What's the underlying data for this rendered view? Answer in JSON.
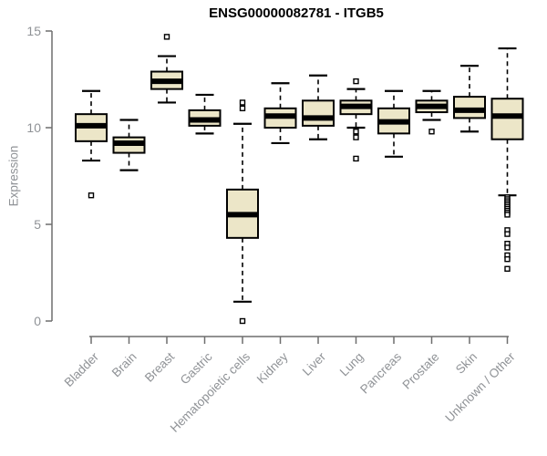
{
  "chart_data": {
    "type": "box",
    "title": "ENSG00000082781 - ITGB5",
    "ylabel": "Expression",
    "xlabel": "",
    "ylim": [
      0,
      15
    ],
    "yticks": [
      0,
      5,
      10,
      15
    ],
    "grid": false,
    "legend": "none",
    "categories": [
      "Bladder",
      "Brain",
      "Breast",
      "Gastric",
      "Hematopoietic cells",
      "Kidney",
      "Liver",
      "Lung",
      "Pancreas",
      "Prostate",
      "Skin",
      "Unknown / Other"
    ],
    "series": [
      {
        "category": "Bladder",
        "whisker_low": 8.3,
        "q1": 9.3,
        "median": 10.1,
        "q3": 10.7,
        "whisker_high": 11.9,
        "outliers": [
          6.5
        ]
      },
      {
        "category": "Brain",
        "whisker_low": 7.8,
        "q1": 8.7,
        "median": 9.2,
        "q3": 9.5,
        "whisker_high": 10.4,
        "outliers": []
      },
      {
        "category": "Breast",
        "whisker_low": 11.3,
        "q1": 12.0,
        "median": 12.4,
        "q3": 12.9,
        "whisker_high": 13.7,
        "outliers": [
          14.7
        ]
      },
      {
        "category": "Gastric",
        "whisker_low": 9.7,
        "q1": 10.1,
        "median": 10.4,
        "q3": 10.9,
        "whisker_high": 11.7,
        "outliers": []
      },
      {
        "category": "Hematopoietic cells",
        "whisker_low": 1.0,
        "q1": 4.3,
        "median": 5.5,
        "q3": 6.8,
        "whisker_high": 10.2,
        "outliers": [
          11.3,
          11.0,
          0.0
        ]
      },
      {
        "category": "Kidney",
        "whisker_low": 9.2,
        "q1": 10.0,
        "median": 10.6,
        "q3": 11.0,
        "whisker_high": 12.3,
        "outliers": []
      },
      {
        "category": "Liver",
        "whisker_low": 9.4,
        "q1": 10.1,
        "median": 10.5,
        "q3": 11.4,
        "whisker_high": 12.7,
        "outliers": []
      },
      {
        "category": "Lung",
        "whisker_low": 10.0,
        "q1": 10.7,
        "median": 11.1,
        "q3": 11.4,
        "whisker_high": 12.0,
        "outliers": [
          12.4,
          9.8,
          9.5,
          8.4
        ]
      },
      {
        "category": "Pancreas",
        "whisker_low": 8.5,
        "q1": 9.7,
        "median": 10.3,
        "q3": 11.0,
        "whisker_high": 11.9,
        "outliers": []
      },
      {
        "category": "Prostate",
        "whisker_low": 10.4,
        "q1": 10.8,
        "median": 11.1,
        "q3": 11.4,
        "whisker_high": 11.9,
        "outliers": [
          9.8
        ]
      },
      {
        "category": "Skin",
        "whisker_low": 9.8,
        "q1": 10.5,
        "median": 10.9,
        "q3": 11.6,
        "whisker_high": 13.2,
        "outliers": []
      },
      {
        "category": "Unknown / Other",
        "whisker_low": 6.5,
        "q1": 9.4,
        "median": 10.6,
        "q3": 11.5,
        "whisker_high": 14.1,
        "outliers": [
          6.4,
          6.3,
          6.2,
          6.1,
          6.0,
          5.9,
          5.8,
          5.7,
          5.6,
          5.5,
          4.7,
          4.5,
          4.0,
          3.8,
          3.4,
          3.2,
          2.7
        ]
      }
    ],
    "style": {
      "box_fill": "#ECE6C8",
      "box_stroke": "#000000",
      "outlier_fill": "#ffffff",
      "axis_color": "#6e6e6e",
      "label_color": "#8f9296",
      "title_color": "#000000",
      "background": "#ffffff"
    }
  }
}
